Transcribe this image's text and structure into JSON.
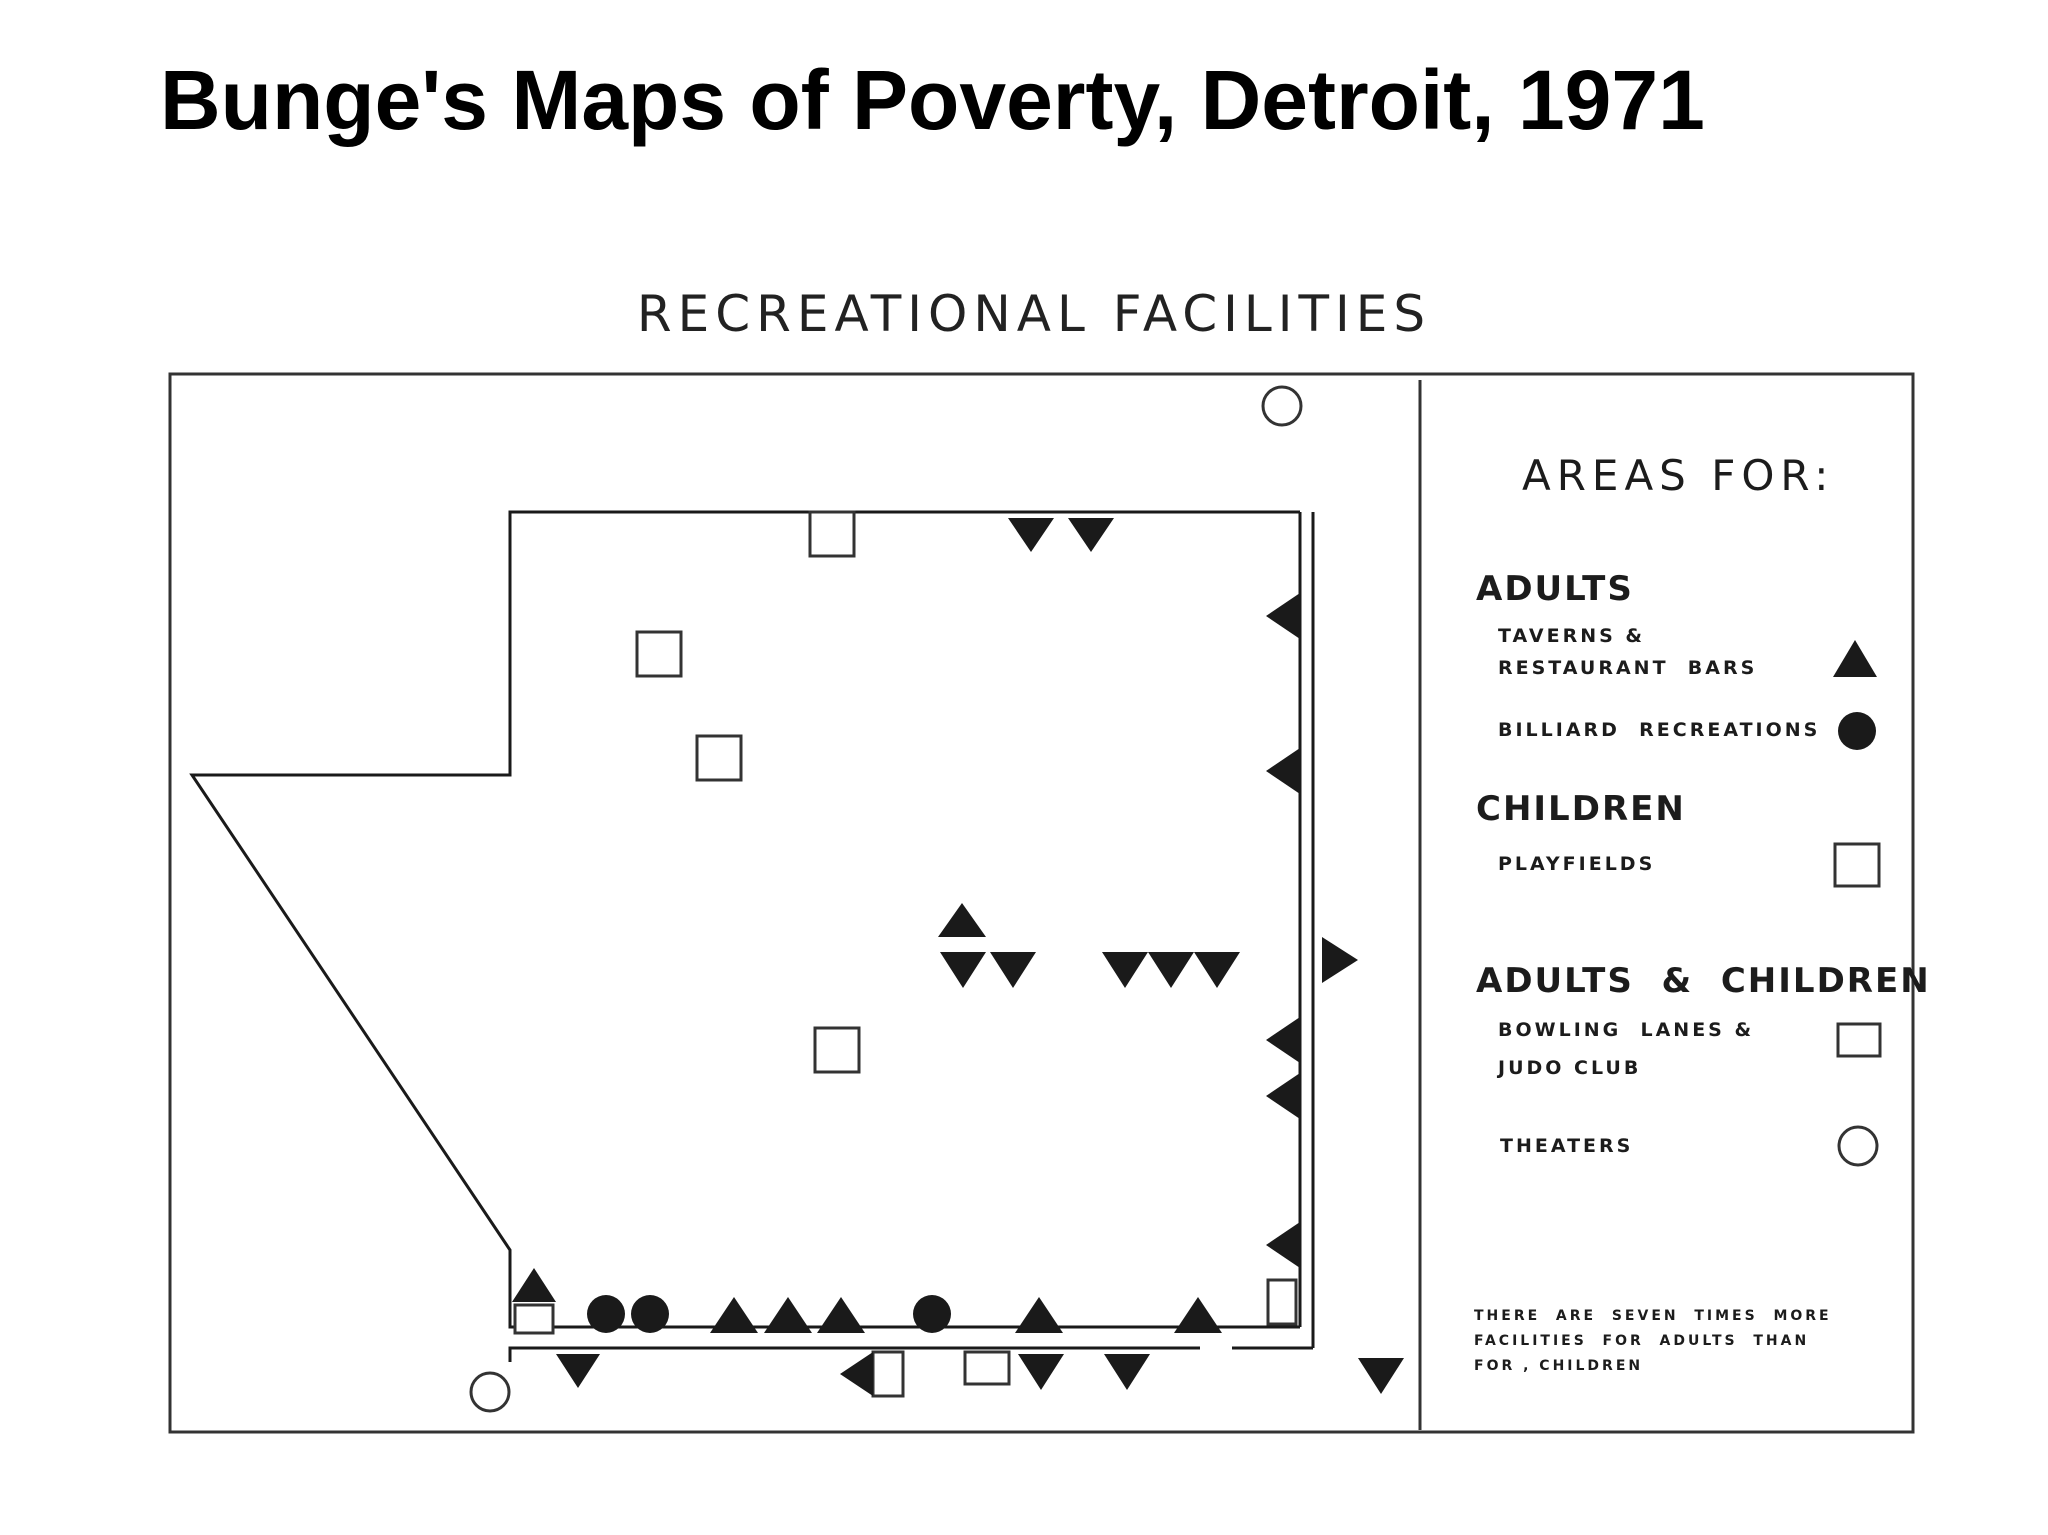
{
  "slide": {
    "title": "Bunge's Maps of Poverty, Detroit, 1971"
  },
  "map": {
    "title": "RECREATIONAL  FACILITIES",
    "colors": {
      "ink": "#1a1a1a",
      "frame": "#333333",
      "paper": "#ffffff"
    }
  },
  "legend": {
    "heading": "AREAS FOR:",
    "groups": [
      {
        "name": "ADULTS",
        "items": [
          {
            "lines": [
              "TAVERNS &",
              "RESTAURANT  BARS"
            ],
            "symbol": "filled-triangle-icon"
          },
          {
            "lines": [
              "BILLIARD  RECREATIONS"
            ],
            "symbol": "filled-circle-icon"
          }
        ]
      },
      {
        "name": "CHILDREN",
        "items": [
          {
            "lines": [
              "PLAYFIELDS"
            ],
            "symbol": "open-square-icon"
          }
        ]
      },
      {
        "name": "ADULTS  &  CHILDREN",
        "items": [
          {
            "lines": [
              "BOWLING  LANES &",
              "JUDO CLUB"
            ],
            "symbol": "open-square-icon"
          },
          {
            "lines": [
              "THEATERS"
            ],
            "symbol": "open-circle-icon"
          }
        ]
      }
    ],
    "note": [
      "THERE  ARE  SEVEN  TIMES  MORE",
      "FACILITIES  FOR  ADULTS  THAN",
      "FOR , CHILDREN"
    ]
  }
}
